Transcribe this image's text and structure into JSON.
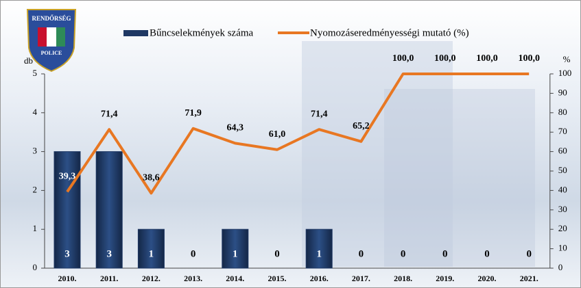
{
  "logo": {
    "top": "RENDŐRSÉG",
    "bottom": "POLICE"
  },
  "chart_data": {
    "type": "bar",
    "categories": [
      "2010.",
      "2011.",
      "2012.",
      "2013.",
      "2014.",
      "2015.",
      "2016.",
      "2017.",
      "2018.",
      "2019.",
      "2020.",
      "2021."
    ],
    "series": [
      {
        "name": "Bűncselekmények száma",
        "type": "bar",
        "color": "#1f3864",
        "values": [
          3,
          3,
          1,
          0,
          1,
          0,
          1,
          0,
          0,
          0,
          0,
          0
        ]
      },
      {
        "name": "Nyomozáseredményességi mutató (%)",
        "type": "line",
        "axis": "y2",
        "color": "#e87722",
        "values": [
          39.3,
          71.4,
          38.6,
          71.9,
          64.3,
          61.0,
          71.4,
          65.2,
          100,
          100,
          100,
          100
        ],
        "value_labels": [
          "39,3",
          "71,4",
          "38,6",
          "71,9",
          "64,3",
          "61,0",
          "71,4",
          "65,2",
          "100,0",
          "100,0",
          "100,0",
          "100,0"
        ]
      }
    ],
    "ylabel": "db",
    "y2label": "%",
    "ylim": [
      0,
      5
    ],
    "yticks": [
      0,
      1,
      2,
      3,
      4,
      5
    ],
    "y2lim": [
      0,
      100
    ],
    "y2ticks": [
      0,
      10,
      20,
      30,
      40,
      50,
      60,
      70,
      80,
      90,
      100
    ],
    "legend": "top"
  }
}
